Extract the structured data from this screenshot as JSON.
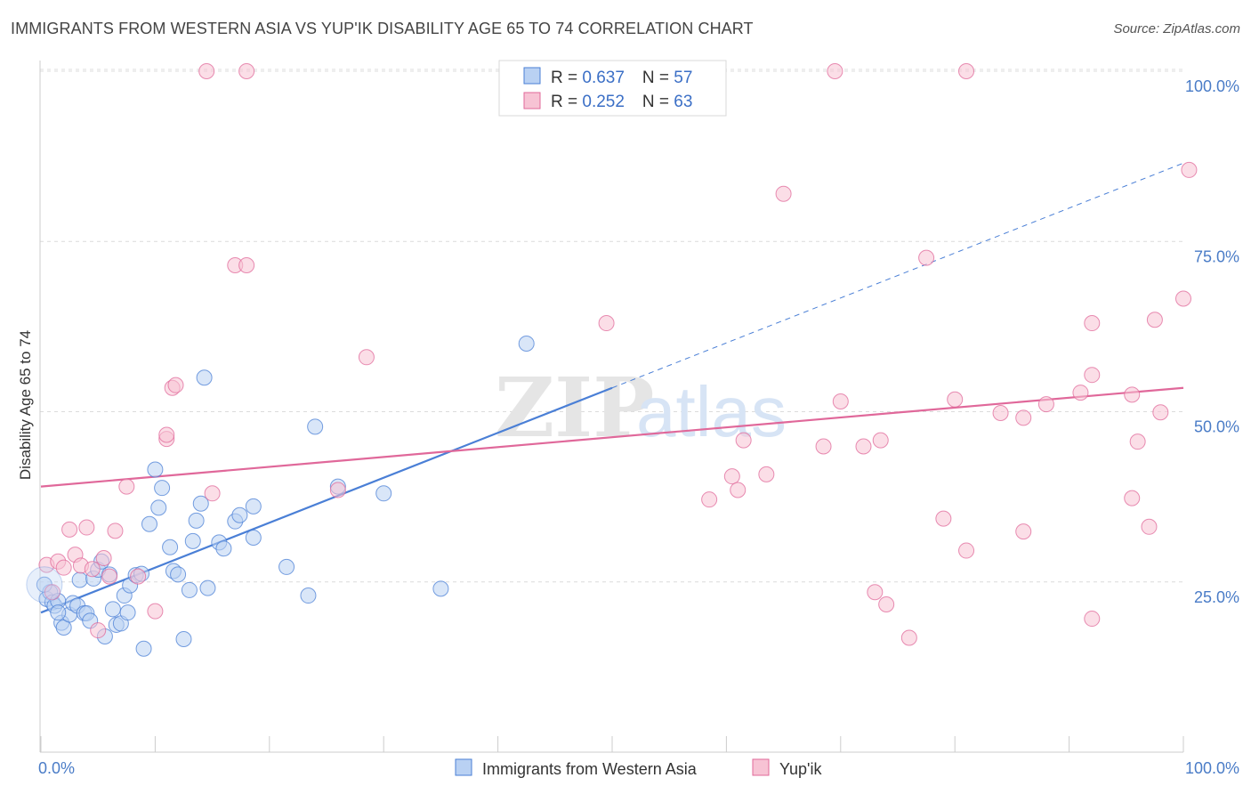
{
  "title": "IMMIGRANTS FROM WESTERN ASIA VS YUP'IK DISABILITY AGE 65 TO 74 CORRELATION CHART",
  "source": "Source: ZipAtlas.com",
  "watermark": {
    "zip": "ZIP",
    "atlas": "atlas"
  },
  "colors": {
    "blue": "#4a7fd6",
    "blue_fill": "#b9d1f3",
    "pink": "#e0689a",
    "pink_fill": "#f7c3d4"
  },
  "legend": {
    "rows": [
      {
        "r_label": "R = ",
        "r": "0.637",
        "n_label": "N = ",
        "n": "57"
      },
      {
        "r_label": "R = ",
        "r": "0.252",
        "n_label": "N = ",
        "n": "63"
      }
    ]
  },
  "chart_data": {
    "type": "scatter",
    "xlabel": "",
    "ylabel": "Disability Age 65 to 74",
    "xlim": [
      0,
      100
    ],
    "ylim": [
      0,
      100
    ],
    "x_tick_labels": [
      "0.0%",
      "100.0%"
    ],
    "y_ticks": [
      25,
      50,
      75,
      100
    ],
    "y_tick_labels": [
      "25.0%",
      "50.0%",
      "75.0%",
      "100.0%"
    ],
    "grid": true,
    "legend_position": "top-center",
    "series": [
      {
        "name": "Immigrants from Western Asia",
        "color": "#4a7fd6",
        "fill": "#b9d1f3",
        "trend": {
          "x0": 0,
          "y0": 20.5,
          "x1": 50,
          "y1": 53.5,
          "dashed_to_x": 100,
          "dashed_to_y": 86.5
        },
        "points": [
          [
            0.5,
            22.5
          ],
          [
            0.8,
            23.5
          ],
          [
            1.0,
            22.0
          ],
          [
            1.2,
            21.5
          ],
          [
            1.5,
            22.2
          ],
          [
            1.8,
            19.0
          ],
          [
            2.0,
            18.3
          ],
          [
            2.5,
            20.2
          ],
          [
            2.8,
            21.9
          ],
          [
            3.2,
            21.5
          ],
          [
            3.4,
            25.3
          ],
          [
            3.8,
            20.4
          ],
          [
            4.0,
            20.4
          ],
          [
            4.3,
            19.3
          ],
          [
            4.6,
            25.5
          ],
          [
            5.0,
            26.8
          ],
          [
            5.3,
            28.0
          ],
          [
            5.6,
            17.0
          ],
          [
            6.0,
            26.1
          ],
          [
            6.3,
            21.0
          ],
          [
            6.6,
            18.7
          ],
          [
            7.0,
            18.9
          ],
          [
            7.3,
            23.0
          ],
          [
            7.6,
            20.5
          ],
          [
            7.8,
            24.5
          ],
          [
            8.3,
            26.0
          ],
          [
            8.8,
            26.2
          ],
          [
            9.0,
            15.2
          ],
          [
            9.5,
            33.5
          ],
          [
            10.0,
            41.5
          ],
          [
            10.3,
            35.9
          ],
          [
            10.6,
            38.8
          ],
          [
            11.3,
            30.1
          ],
          [
            11.6,
            26.6
          ],
          [
            12.0,
            26.1
          ],
          [
            12.5,
            16.6
          ],
          [
            13.0,
            23.8
          ],
          [
            13.3,
            31.0
          ],
          [
            13.6,
            34.0
          ],
          [
            14.0,
            36.5
          ],
          [
            14.3,
            55.0
          ],
          [
            14.6,
            24.1
          ],
          [
            15.6,
            30.8
          ],
          [
            16.0,
            29.9
          ],
          [
            17.0,
            33.9
          ],
          [
            17.4,
            34.8
          ],
          [
            18.6,
            36.1
          ],
          [
            18.6,
            31.5
          ],
          [
            21.5,
            27.2
          ],
          [
            23.4,
            23.0
          ],
          [
            24.0,
            47.8
          ],
          [
            26.0,
            39.0
          ],
          [
            30.0,
            38.0
          ],
          [
            35.0,
            24.0
          ],
          [
            42.5,
            60.0
          ],
          [
            1.5,
            20.5
          ],
          [
            0.3,
            24.6
          ]
        ]
      },
      {
        "name": "Yup'ik",
        "color": "#e0689a",
        "fill": "#f7c3d4",
        "trend": {
          "x0": 0,
          "y0": 39.0,
          "x1": 100,
          "y1": 53.5
        },
        "points": [
          [
            0.5,
            27.5
          ],
          [
            1.0,
            23.5
          ],
          [
            1.5,
            28.0
          ],
          [
            2.0,
            27.1
          ],
          [
            2.5,
            32.7
          ],
          [
            3.0,
            29.0
          ],
          [
            3.5,
            27.4
          ],
          [
            4.0,
            33.0
          ],
          [
            4.5,
            26.9
          ],
          [
            5.0,
            17.9
          ],
          [
            5.5,
            28.5
          ],
          [
            6.0,
            25.8
          ],
          [
            6.5,
            32.5
          ],
          [
            7.5,
            39.0
          ],
          [
            8.5,
            25.8
          ],
          [
            10.0,
            20.7
          ],
          [
            11.0,
            46.0
          ],
          [
            11.0,
            46.6
          ],
          [
            11.5,
            53.5
          ],
          [
            11.8,
            53.9
          ],
          [
            15.0,
            38.0
          ],
          [
            17.0,
            71.5
          ],
          [
            18.0,
            71.5
          ],
          [
            14.5,
            100.0
          ],
          [
            18.0,
            100.0
          ],
          [
            26.0,
            38.5
          ],
          [
            28.5,
            58.0
          ],
          [
            49.5,
            63.0
          ],
          [
            58.5,
            37.1
          ],
          [
            60.5,
            40.5
          ],
          [
            61.0,
            38.5
          ],
          [
            61.5,
            45.8
          ],
          [
            63.5,
            40.8
          ],
          [
            65.0,
            82.0
          ],
          [
            68.5,
            44.9
          ],
          [
            69.5,
            100.0
          ],
          [
            70.0,
            51.5
          ],
          [
            72.0,
            44.9
          ],
          [
            73.0,
            23.5
          ],
          [
            74.0,
            21.7
          ],
          [
            73.5,
            45.8
          ],
          [
            76.0,
            16.8
          ],
          [
            77.5,
            72.6
          ],
          [
            79.0,
            34.3
          ],
          [
            80.0,
            51.8
          ],
          [
            81.0,
            100.0
          ],
          [
            81.0,
            29.6
          ],
          [
            84.0,
            49.8
          ],
          [
            86.0,
            49.1
          ],
          [
            86.0,
            32.4
          ],
          [
            88.0,
            51.1
          ],
          [
            91.0,
            52.8
          ],
          [
            92.0,
            63.0
          ],
          [
            92.0,
            55.4
          ],
          [
            92.0,
            19.6
          ],
          [
            95.5,
            52.5
          ],
          [
            95.5,
            37.3
          ],
          [
            96.0,
            45.6
          ],
          [
            97.0,
            33.1
          ],
          [
            97.5,
            63.5
          ],
          [
            98.0,
            49.9
          ],
          [
            100.0,
            66.6
          ],
          [
            100.5,
            85.5
          ]
        ]
      }
    ]
  }
}
